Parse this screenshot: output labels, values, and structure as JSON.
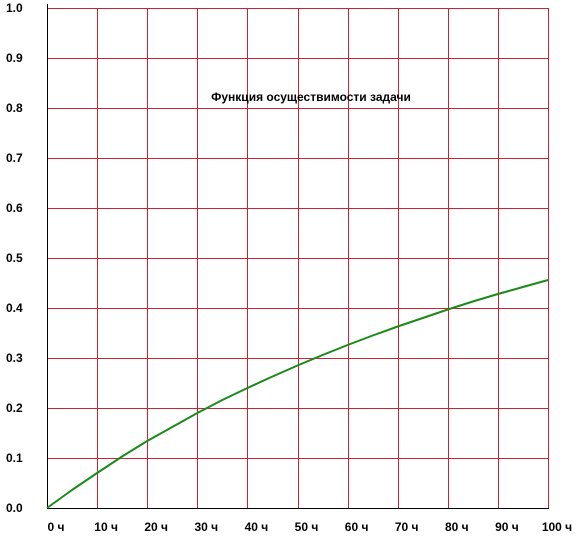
{
  "chart_data": {
    "type": "line",
    "title": "Функция осуществимости задачи",
    "xlabel": "",
    "ylabel": "",
    "xlim": [
      0,
      100
    ],
    "ylim": [
      0,
      1
    ],
    "grid": true,
    "x_ticks": [
      0,
      10,
      20,
      30,
      40,
      50,
      60,
      70,
      80,
      90,
      100
    ],
    "x_tick_labels": [
      "0 ч",
      "10 ч",
      "20 ч",
      "30 ч",
      "40 ч",
      "50 ч",
      "60 ч",
      "70 ч",
      "80 ч",
      "90 ч",
      "100 ч"
    ],
    "y_ticks": [
      0,
      0.1,
      0.2,
      0.3,
      0.4,
      0.5,
      0.6,
      0.7,
      0.8,
      0.9,
      1.0
    ],
    "y_tick_labels": [
      "0.0",
      "0.1",
      "0.2",
      "0.3",
      "0.4",
      "0.5",
      "0.6",
      "0.7",
      "0.8",
      "0.9",
      "1.0"
    ],
    "series": [
      {
        "x": [
          0,
          5,
          10,
          15,
          20,
          25,
          30,
          35,
          40,
          45,
          50,
          55,
          60,
          65,
          70,
          75,
          80,
          85,
          90,
          95,
          100
        ],
        "y": [
          0.0,
          0.036,
          0.07,
          0.103,
          0.134,
          0.162,
          0.19,
          0.216,
          0.24,
          0.263,
          0.285,
          0.306,
          0.326,
          0.345,
          0.363,
          0.38,
          0.397,
          0.413,
          0.428,
          0.442,
          0.456
        ],
        "color": "#1a8a1a"
      }
    ],
    "colors": {
      "grid": "#cc2233",
      "axis": "#000000",
      "line": "#1a8a1a"
    }
  }
}
